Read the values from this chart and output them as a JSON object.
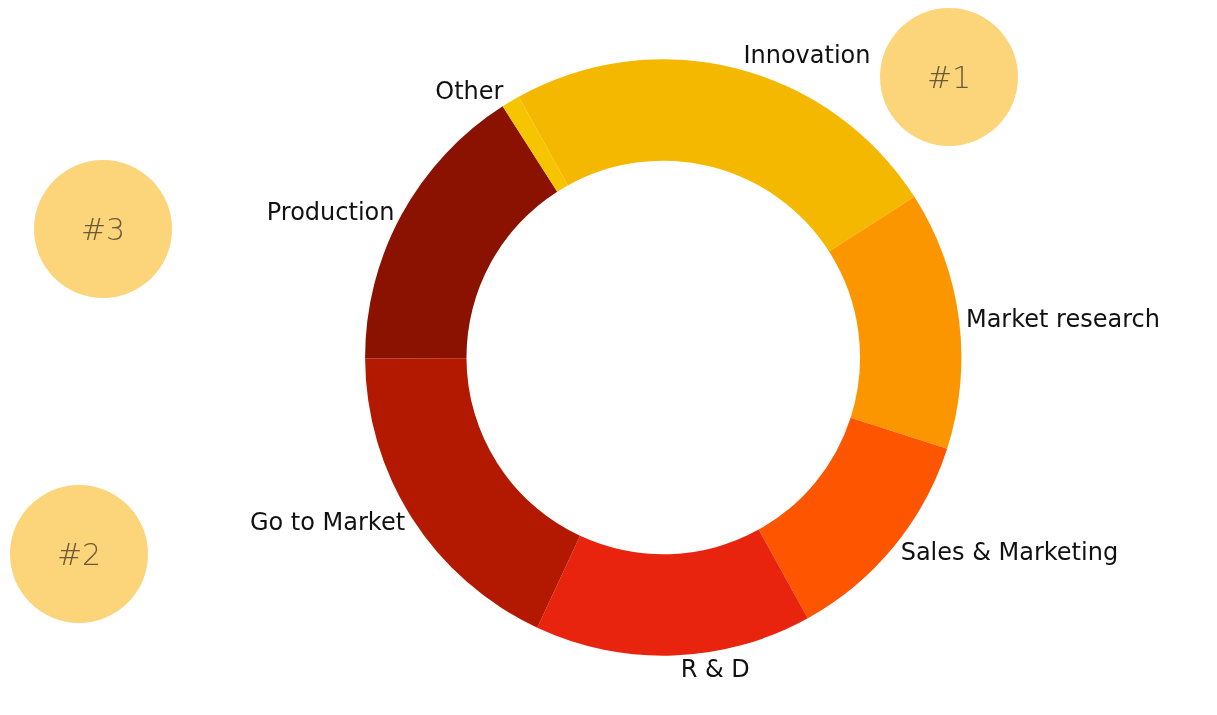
{
  "chart_data": {
    "type": "donut",
    "categories": [
      "Innovation",
      "Market research",
      "Sales & Marketing",
      "R & D",
      "Go to Market",
      "Production",
      "Other"
    ],
    "values": [
      24,
      14,
      12,
      15,
      18,
      16,
      1
    ],
    "colors": [
      "#f5b800",
      "#fb9600",
      "#fd5500",
      "#e8240f",
      "#b31900",
      "#8b1200",
      "#f7c400"
    ],
    "annotations": [
      "#1",
      "#2",
      "#3"
    ],
    "legend": false
  }
}
